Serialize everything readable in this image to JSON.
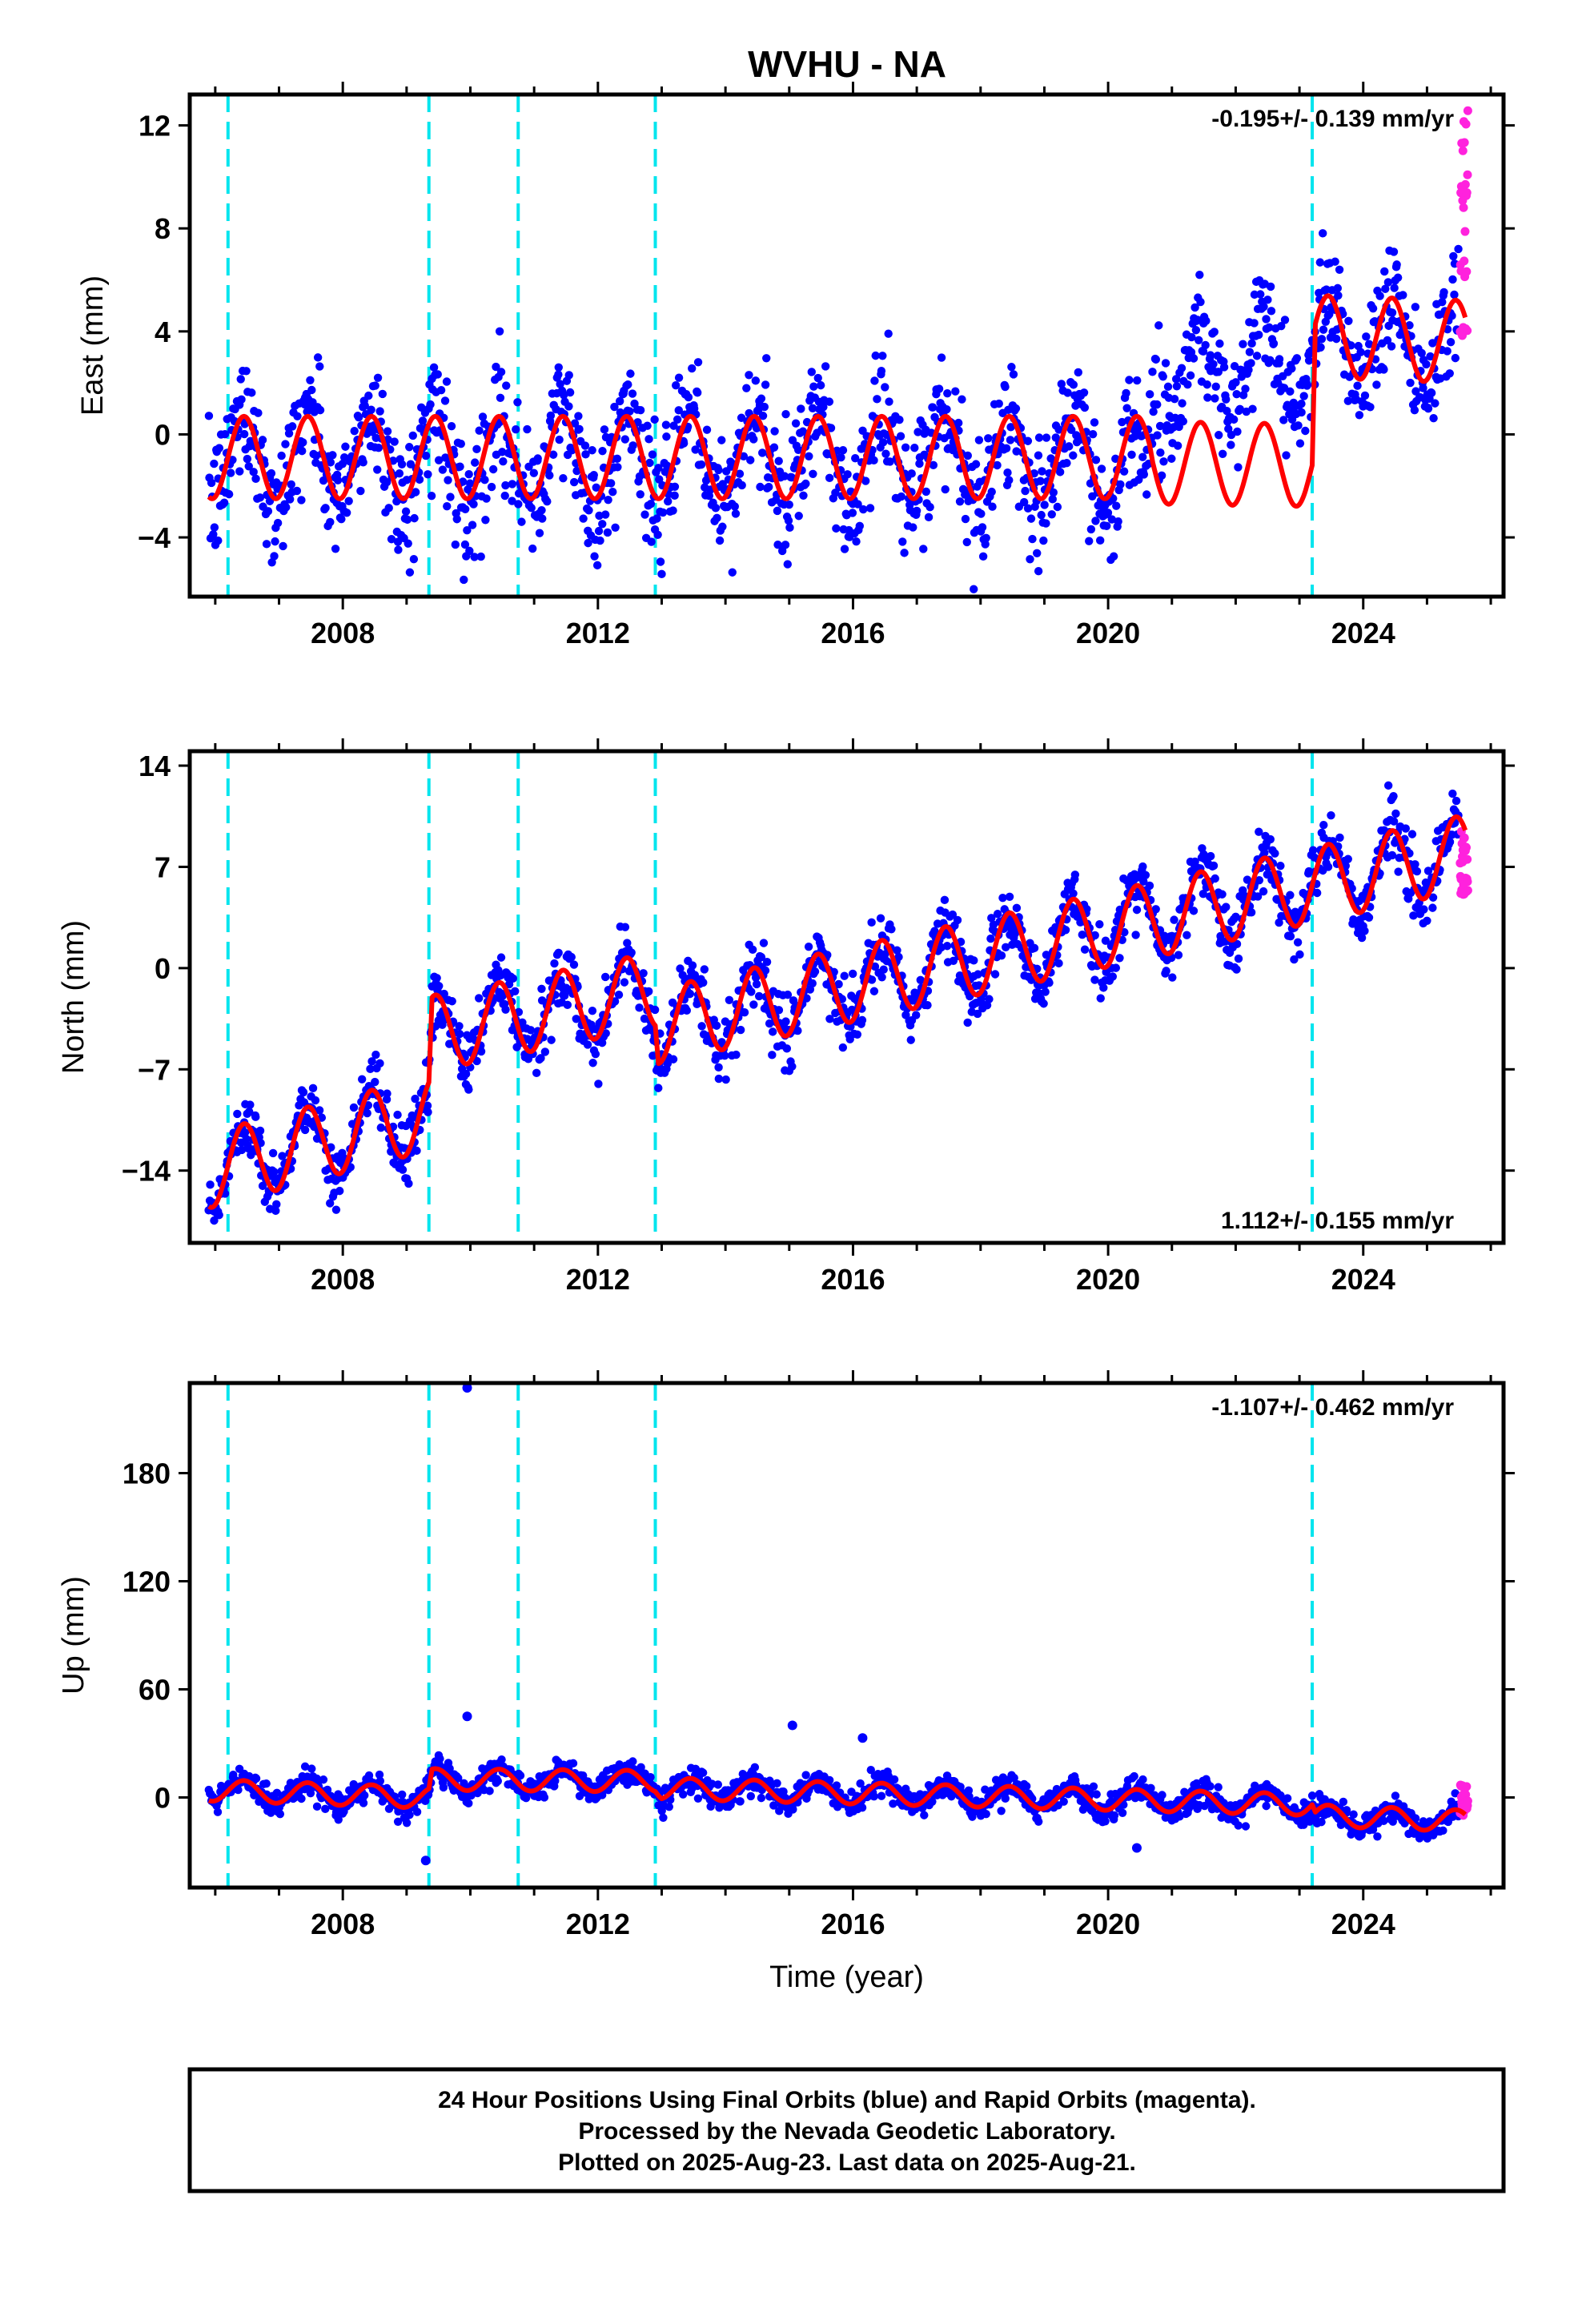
{
  "title": "WVHU - NA",
  "footer": {
    "lines": [
      "24 Hour Positions Using Final Orbits (blue) and Rapid Orbits (magenta).",
      "Processed by the Nevada Geodetic Laboratory.",
      "Plotted on 2025-Aug-23. Last data on 2025-Aug-21."
    ]
  },
  "colors": {
    "final_orbits": "#0000ff",
    "rapid_orbits": "#ff22dd",
    "model": "#ff0000",
    "offset_lines": "#00e5ee",
    "frame": "#000000"
  },
  "chart_data": [
    {
      "type": "scatter",
      "component": "east",
      "ylabel": "East (mm)",
      "xlabel": "",
      "rate_label": "-0.195+/- 0.139 mm/yr",
      "rate_position": "top-right",
      "xlim": [
        2005.6,
        2026.2
      ],
      "ylim": [
        -6.3,
        13.2
      ],
      "xticks": [
        2008,
        2012,
        2016,
        2020,
        2024
      ],
      "yticks": [
        -4,
        0,
        4,
        8,
        12
      ],
      "offsets": [
        2006.2,
        2009.35,
        2010.75,
        2012.9,
        2023.2
      ],
      "series": [
        {
          "name": "Final Orbits (blue)",
          "t0": 2005.9,
          "t1": 2025.5,
          "level_points": [
            [
              2005.9,
              -0.9
            ],
            [
              2020.65,
              -1.1
            ],
            [
              2020.7,
              2.2
            ],
            [
              2023.2,
              2.9
            ],
            [
              2023.25,
              4.0
            ],
            [
              2025.5,
              3.6
            ]
          ],
          "seasonal_amplitude": 1.8,
          "scatter_sd": 1.2
        },
        {
          "name": "Rapid Orbits (magenta)",
          "t0": 2025.52,
          "t1": 2025.64,
          "range": [
            3.6,
            12.7
          ]
        },
        {
          "name": "model",
          "level_points": [
            [
              2005.9,
              -0.9
            ],
            [
              2020.65,
              -0.9
            ],
            [
              2020.7,
              -1.1
            ],
            [
              2023.2,
              -1.2
            ],
            [
              2023.25,
              3.8
            ],
            [
              2025.6,
              3.6
            ]
          ],
          "seasonal_amplitude": 1.6
        }
      ]
    },
    {
      "type": "scatter",
      "component": "north",
      "ylabel": "North (mm)",
      "xlabel": "",
      "rate_label": "1.112+/- 0.155 mm/yr",
      "rate_position": "bottom-right",
      "xlim": [
        2005.6,
        2026.2
      ],
      "ylim": [
        -19.0,
        15.0
      ],
      "xticks": [
        2008,
        2012,
        2016,
        2020,
        2024
      ],
      "yticks": [
        -14,
        -7,
        0,
        7,
        14
      ],
      "offsets": [
        2006.2,
        2009.35,
        2010.75,
        2012.9,
        2023.2
      ],
      "series": [
        {
          "name": "Final Orbits (blue)",
          "t0": 2005.9,
          "t1": 2025.5,
          "level_points": [
            [
              2005.9,
              -14.0
            ],
            [
              2009.35,
              -10.0
            ],
            [
              2009.4,
              -4.5
            ],
            [
              2012.9,
              -1.5
            ],
            [
              2012.95,
              -4.0
            ],
            [
              2025.5,
              8.0
            ]
          ],
          "seasonal_amplitude": 2.6,
          "scatter_sd": 1.1
        },
        {
          "name": "Rapid Orbits (magenta)",
          "t0": 2025.52,
          "t1": 2025.64,
          "range": [
            5.0,
            9.5
          ]
        },
        {
          "name": "model",
          "level_points": [
            [
              2005.9,
              -14.0
            ],
            [
              2009.35,
              -10.0
            ],
            [
              2009.4,
              -4.5
            ],
            [
              2012.9,
              -1.5
            ],
            [
              2012.95,
              -4.0
            ],
            [
              2025.6,
              8.0
            ]
          ],
          "seasonal_amplitude": 2.6
        }
      ]
    },
    {
      "type": "scatter",
      "component": "up",
      "ylabel": "Up (mm)",
      "xlabel": "Time (year)",
      "rate_label": "-1.107+/- 0.462 mm/yr",
      "rate_position": "top-right",
      "xlim": [
        2005.6,
        2026.2
      ],
      "ylim": [
        -50,
        230
      ],
      "xticks": [
        2008,
        2012,
        2016,
        2020,
        2024
      ],
      "yticks": [
        0,
        60,
        120,
        180
      ],
      "offsets": [
        2006.2,
        2009.35,
        2010.75,
        2012.9,
        2023.2
      ],
      "series": [
        {
          "name": "Final Orbits (blue)",
          "t0": 2005.9,
          "t1": 2025.5,
          "level_points": [
            [
              2005.9,
              4
            ],
            [
              2009.35,
              0
            ],
            [
              2009.4,
              10
            ],
            [
              2012.9,
              9
            ],
            [
              2013.0,
              5
            ],
            [
              2023.2,
              -4
            ],
            [
              2023.25,
              -10
            ],
            [
              2025.5,
              -13
            ]
          ],
          "seasonal_amplitude": 6,
          "scatter_sd": 3.5
        },
        {
          "name": "Rapid Orbits (magenta)",
          "t0": 2025.52,
          "t1": 2025.64,
          "range": [
            -10,
            8
          ]
        },
        {
          "name": "model",
          "level_points": [
            [
              2005.9,
              4
            ],
            [
              2009.35,
              0
            ],
            [
              2009.4,
              10
            ],
            [
              2012.9,
              9
            ],
            [
              2013.0,
              5
            ],
            [
              2023.2,
              -4
            ],
            [
              2023.25,
              -10
            ],
            [
              2025.6,
              -13
            ]
          ],
          "seasonal_amplitude": 6
        }
      ],
      "outliers": [
        [
          2009.95,
          233
        ],
        [
          2009.95,
          45
        ],
        [
          2015.05,
          40
        ],
        [
          2016.15,
          33
        ],
        [
          2020.45,
          -28
        ],
        [
          2009.3,
          -35
        ]
      ]
    }
  ]
}
